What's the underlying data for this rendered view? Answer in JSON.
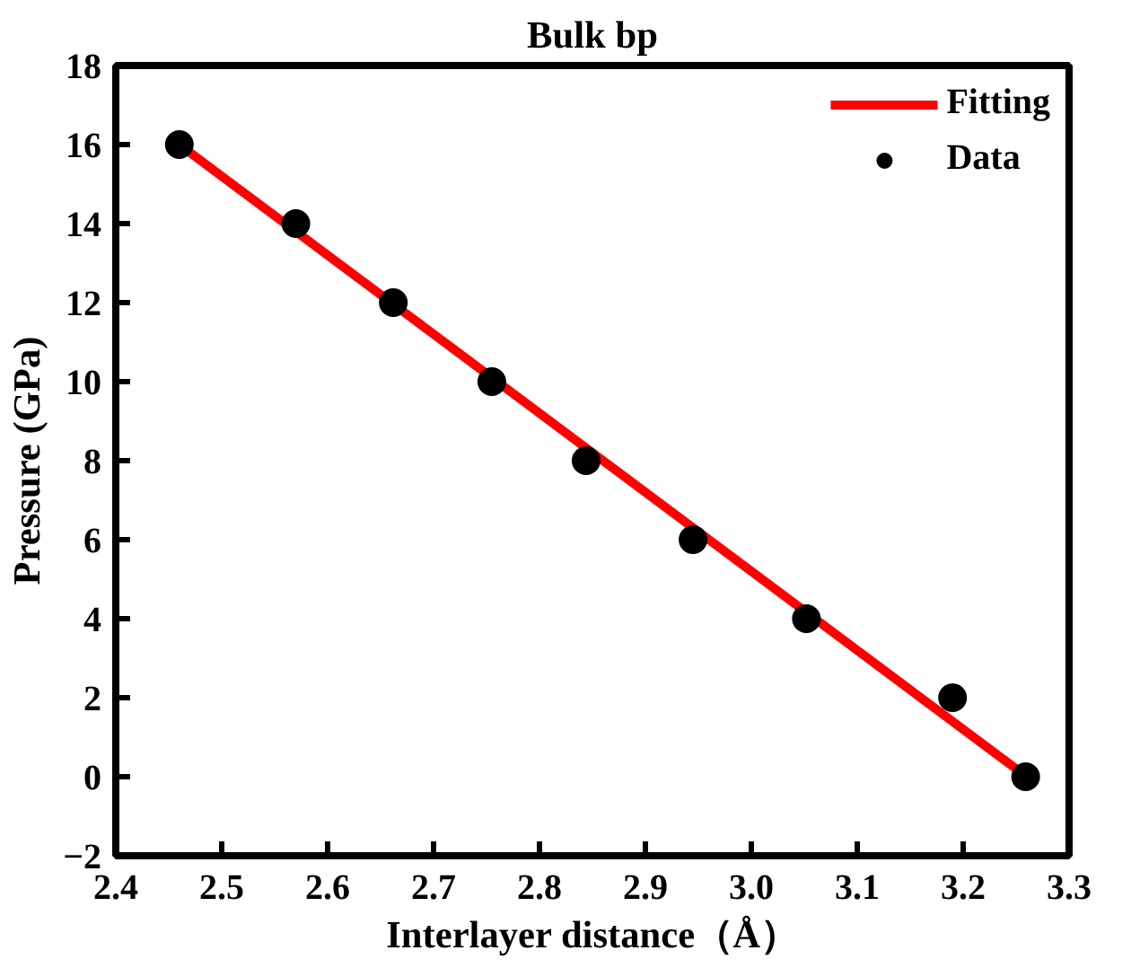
{
  "chart_data": {
    "type": "scatter",
    "title": "Bulk bp",
    "xlabel": "Interlayer distance（Å）",
    "ylabel": "Pressure (GPa)",
    "xlim": [
      2.4,
      3.3
    ],
    "xticks": [
      2.4,
      {
        "value": 2.5,
        "label": "2.5"
      },
      2.6,
      2.7,
      2.8,
      2.9,
      {
        "value": 3.0,
        "label": "3.0"
      },
      3.1,
      3.2,
      3.3
    ],
    "ylim": [
      -2,
      18
    ],
    "yticks": [
      -2,
      0,
      2,
      4,
      6,
      8,
      10,
      12,
      14,
      16,
      18
    ],
    "grid": false,
    "legend": "top right",
    "series": [
      {
        "name": "Fitting",
        "type": "line",
        "color": "#ff0000",
        "x": [
          2.46,
          3.26
        ],
        "values": [
          16.0,
          0.0
        ],
        "marker": "none",
        "line_style": "solid"
      },
      {
        "name": "Data",
        "color": "#000000",
        "marker": "circle",
        "x": [
          2.46,
          2.57,
          2.662,
          2.755,
          2.844,
          2.945,
          3.052,
          3.19,
          3.259
        ],
        "values": [
          16,
          14,
          12,
          10,
          8,
          6,
          4,
          2,
          0
        ]
      }
    ]
  }
}
